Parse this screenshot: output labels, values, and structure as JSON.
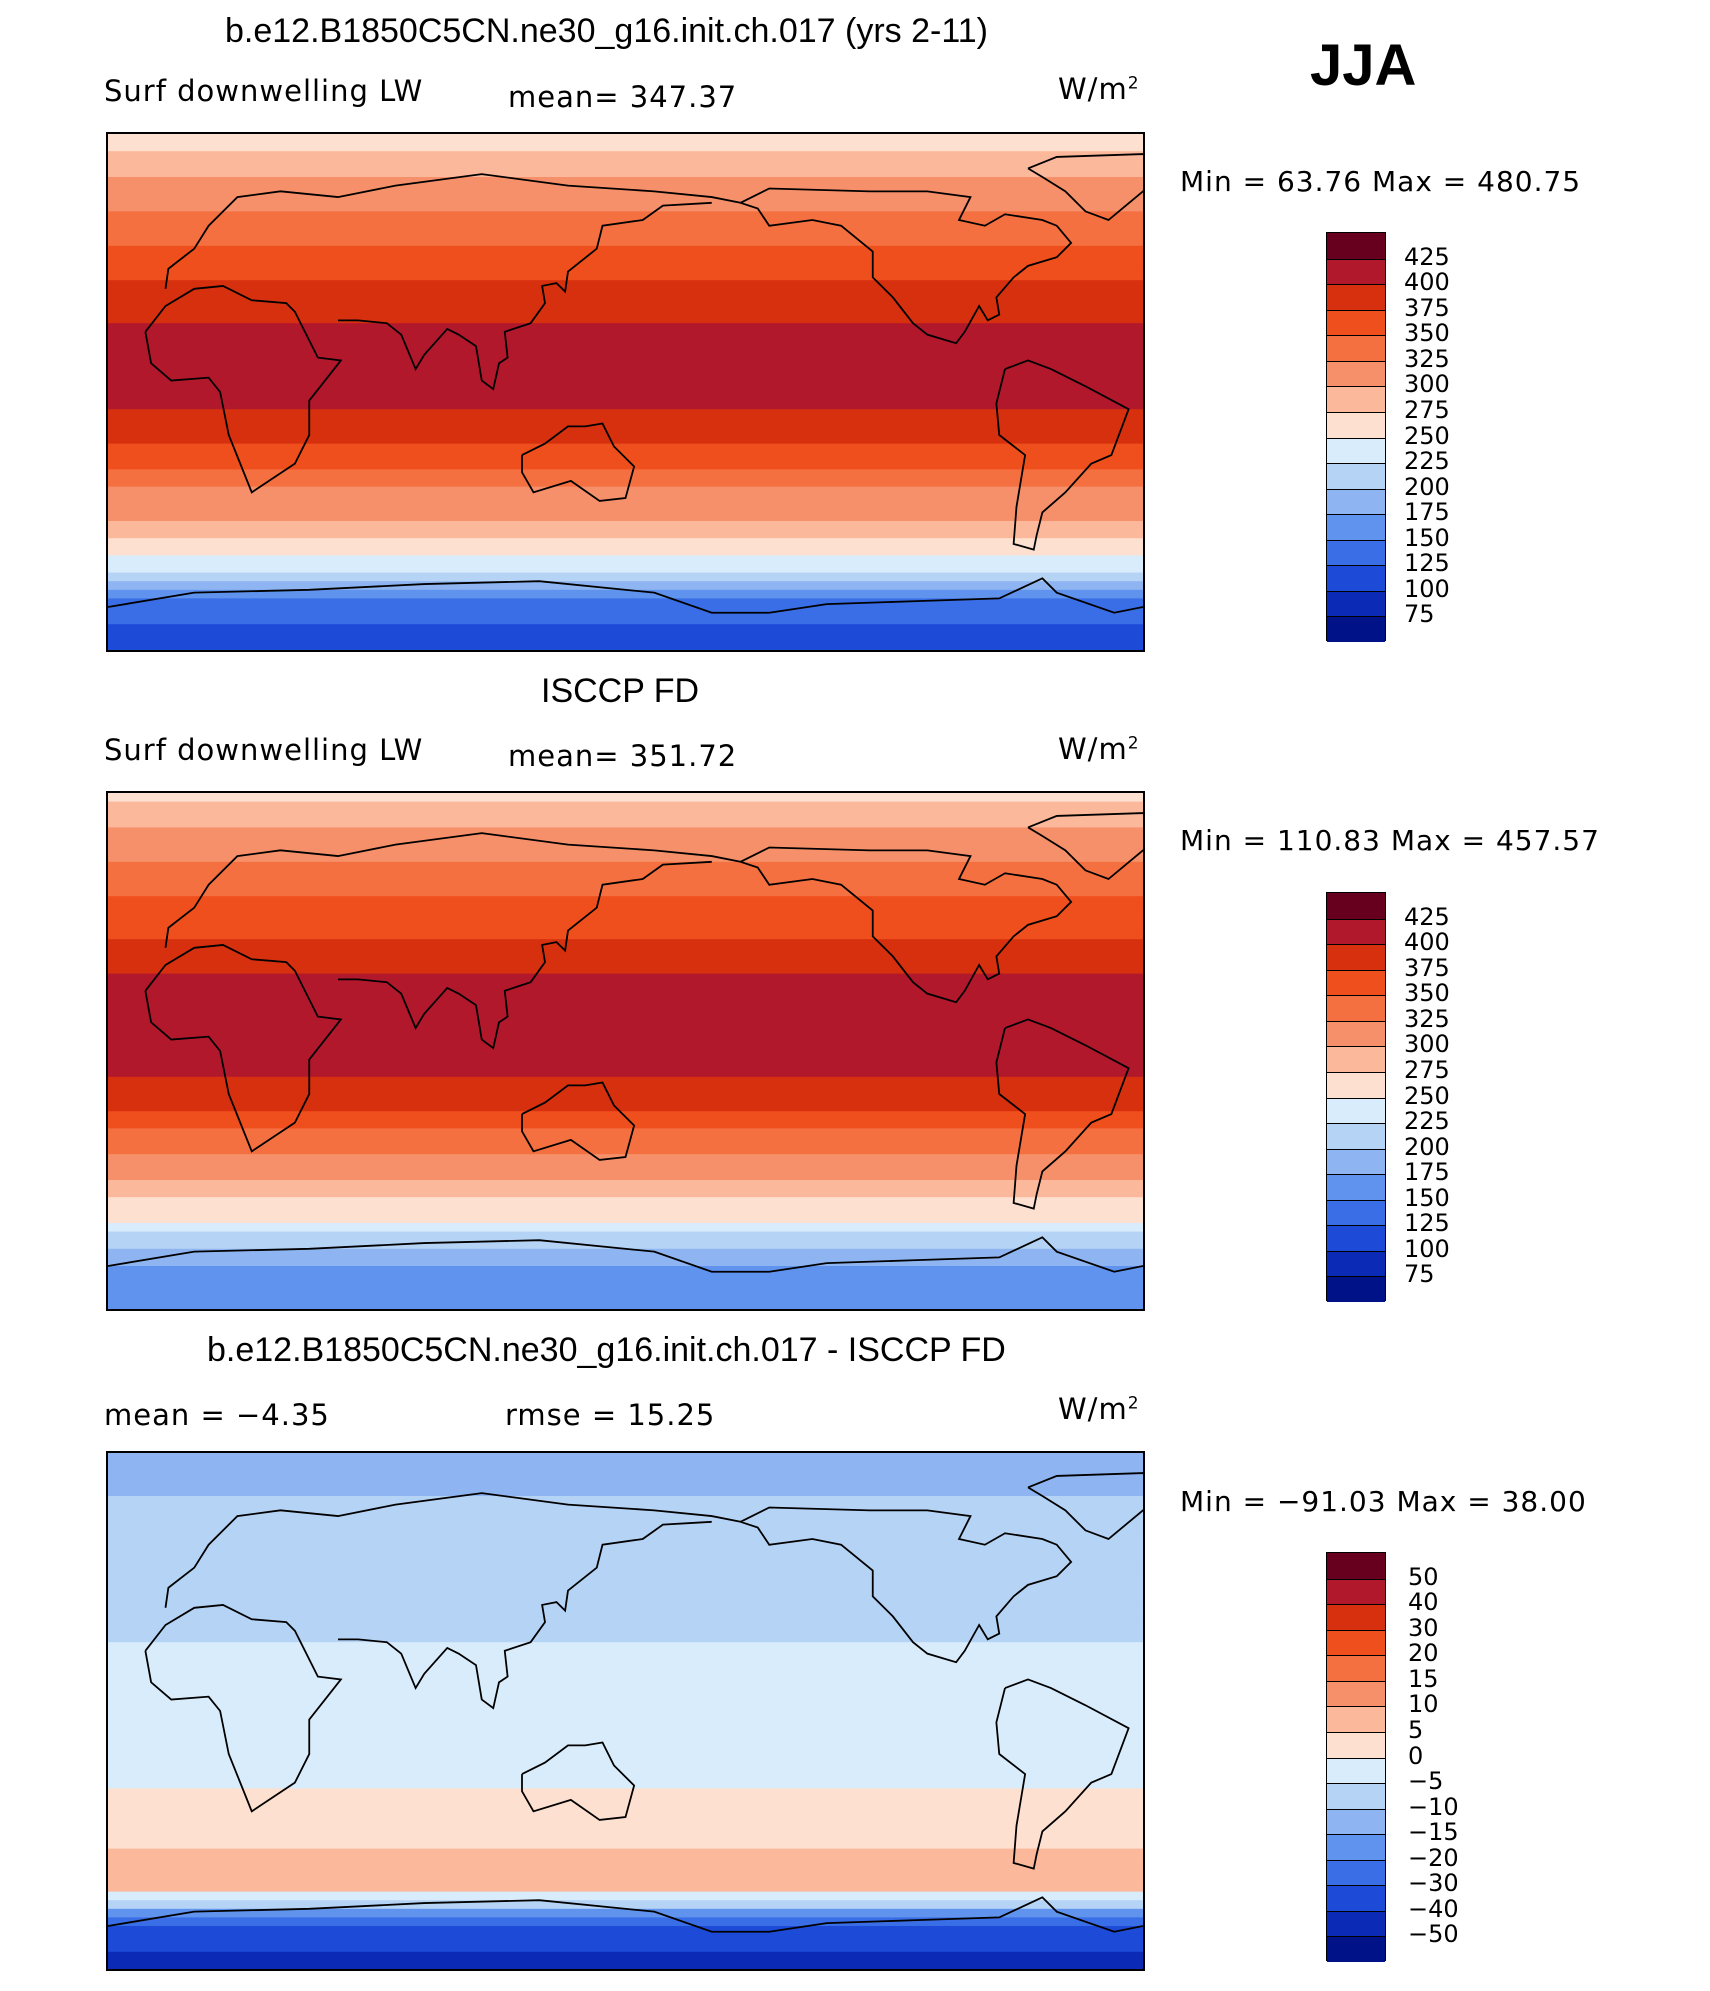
{
  "season": "JJA",
  "panels": [
    {
      "title": "b.e12.B1850C5CN.ne30_g16.init.ch.017 (yrs 2-11)",
      "left_text": "Surf downwelling LW",
      "center_text": "mean= 347.37",
      "units": "W/m",
      "units_sup": "2",
      "minmax": "Min =   63.76 Max = 480.75",
      "colorbar_labels": [
        "425",
        "400",
        "375",
        "350",
        "325",
        "300",
        "275",
        "250",
        "225",
        "200",
        "175",
        "150",
        "125",
        "100",
        "75"
      ]
    },
    {
      "title": "ISCCP FD",
      "left_text": "Surf downwelling LW",
      "center_text": "mean= 351.72",
      "units": "W/m",
      "units_sup": "2",
      "minmax": "Min = 110.83 Max = 457.57",
      "colorbar_labels": [
        "425",
        "400",
        "375",
        "350",
        "325",
        "300",
        "275",
        "250",
        "225",
        "200",
        "175",
        "150",
        "125",
        "100",
        "75"
      ]
    },
    {
      "title": "b.e12.B1850C5CN.ne30_g16.init.ch.017 - ISCCP FD",
      "left_text": "mean =   −4.35",
      "center_text": "rmse =   15.25",
      "units": "W/m",
      "units_sup": "2",
      "minmax": "Min = −91.03 Max =   38.00",
      "colorbar_labels": [
        "50",
        "40",
        "30",
        "20",
        "15",
        "10",
        "5",
        "0",
        "−5",
        "−10",
        "−15",
        "−20",
        "−30",
        "−40",
        "−50"
      ]
    }
  ],
  "colors": {
    "sequential": [
      "#67001f",
      "#b2182b",
      "#d6300f",
      "#ef4f1c",
      "#f47040",
      "#f6906a",
      "#fbb89a",
      "#fde0cf",
      "#d9ecfb",
      "#b5d3f5",
      "#8eb5f1",
      "#5f93ee",
      "#3a6ee6",
      "#1d4bd8",
      "#0b2ab5",
      "#001287"
    ],
    "difference": [
      "#67001f",
      "#b2182b",
      "#d6300f",
      "#ef4f1c",
      "#f47040",
      "#f6906a",
      "#fbb89a",
      "#fde0cf",
      "#d9ecfb",
      "#b5d3f5",
      "#8eb5f1",
      "#5f93ee",
      "#3a6ee6",
      "#1d4bd8",
      "#0b2ab5",
      "#001287"
    ]
  },
  "chart_data": [
    {
      "type": "heatmap",
      "title": "b.e12.B1850C5CN.ne30_g16.init.ch.017 (yrs 2-11)",
      "variable": "Surf downwelling LW",
      "units": "W/m2",
      "mean": 347.37,
      "min": 63.76,
      "max": 480.75,
      "contour_levels": [
        75,
        100,
        125,
        150,
        175,
        200,
        225,
        250,
        275,
        300,
        325,
        350,
        375,
        400,
        425
      ],
      "zonal_profile": {
        "lat": [
          90,
          75,
          60,
          45,
          30,
          15,
          0,
          -15,
          -30,
          -45,
          -60,
          -75,
          -90
        ],
        "value": [
          255,
          300,
          330,
          360,
          390,
          415,
          410,
          385,
          335,
          300,
          235,
          140,
          100
        ]
      }
    },
    {
      "type": "heatmap",
      "title": "ISCCP FD",
      "variable": "Surf downwelling LW",
      "units": "W/m2",
      "mean": 351.72,
      "min": 110.83,
      "max": 457.57,
      "contour_levels": [
        75,
        100,
        125,
        150,
        175,
        200,
        225,
        250,
        275,
        300,
        325,
        350,
        375,
        400,
        425
      ],
      "zonal_profile": {
        "lat": [
          90,
          75,
          60,
          45,
          30,
          15,
          0,
          -15,
          -30,
          -45,
          -60,
          -75,
          -90
        ],
        "value": [
          265,
          305,
          335,
          365,
          395,
          420,
          415,
          390,
          340,
          300,
          245,
          175,
          150
        ]
      }
    },
    {
      "type": "heatmap",
      "title": "b.e12.B1850C5CN.ne30_g16.init.ch.017 - ISCCP FD",
      "units": "W/m2",
      "mean": -4.35,
      "rmse": 15.25,
      "min": -91.03,
      "max": 38.0,
      "contour_levels": [
        -50,
        -40,
        -30,
        -20,
        -15,
        -10,
        -5,
        0,
        5,
        10,
        15,
        20,
        30,
        40,
        50
      ],
      "zonal_profile": {
        "lat": [
          90,
          75,
          60,
          45,
          30,
          15,
          0,
          -15,
          -30,
          -45,
          -60,
          -75,
          -90
        ],
        "value": [
          -15,
          -10,
          -5,
          -8,
          -6,
          -3,
          -2,
          -5,
          2,
          3,
          10,
          -30,
          -45
        ]
      }
    }
  ]
}
